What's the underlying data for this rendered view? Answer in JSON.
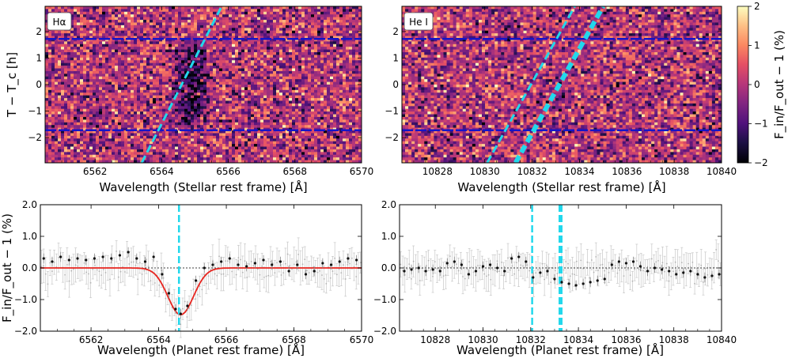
{
  "chart_data": [
    {
      "type": "heatmap",
      "panel": "top-left",
      "tag": "Hα",
      "xlabel": "Wavelength (Stellar rest frame) [Å]",
      "ylabel": "T − T_c [h]",
      "xlim": [
        6560.5,
        6570
      ],
      "ylim": [
        -2.95,
        2.95
      ],
      "xticks": [
        "6562",
        "6564",
        "6566",
        "6568",
        "6570"
      ],
      "xtick_values": [
        6562,
        6564,
        6566,
        6568,
        6570
      ],
      "yticks": [
        "−2",
        "−1",
        "0",
        "1",
        "2"
      ],
      "ytick_values": [
        -2,
        -1,
        0,
        1,
        2
      ],
      "colormap": "magma",
      "clim": [
        -2,
        2
      ],
      "absorption_feature": {
        "center": 6564.9,
        "halfwidth": 0.45,
        "t_range": [
          -1.7,
          1.7
        ],
        "depth": -1.5
      },
      "contact_lines": [
        1.72,
        -1.72
      ],
      "planet_trail": [
        {
          "x": [
            6563.4,
            6565.8
          ],
          "y": [
            -2.95,
            2.95
          ]
        }
      ]
    },
    {
      "type": "heatmap",
      "panel": "top-right",
      "tag": "He I",
      "xlabel": "Wavelength (Stellar rest frame) [Å]",
      "ylabel": "",
      "xlim": [
        10826.5,
        10840
      ],
      "ylim": [
        -2.95,
        2.95
      ],
      "xticks": [
        "10828",
        "10830",
        "10832",
        "10834",
        "10836",
        "10838",
        "10840"
      ],
      "xtick_values": [
        10828,
        10830,
        10832,
        10834,
        10836,
        10838,
        10840
      ],
      "yticks": [
        "−2",
        "−1",
        "0",
        "1",
        "2"
      ],
      "ytick_values": [
        -2,
        -1,
        0,
        1,
        2
      ],
      "colormap": "magma",
      "clim": [
        -2,
        2
      ],
      "contact_lines": [
        1.72,
        -1.72
      ],
      "planet_trail": [
        {
          "x": [
            10830.1,
            10833.8
          ],
          "y": [
            -2.95,
            2.95
          ],
          "width": 3
        },
        {
          "x": [
            10831.3,
            10835.0
          ],
          "y": [
            -2.95,
            2.95
          ],
          "width": 6
        }
      ]
    },
    {
      "type": "scatter",
      "panel": "bottom-left",
      "xlabel": "Wavelength (Planet rest frame) [Å]",
      "ylabel": "F_in/F_out − 1 (%)",
      "xlim": [
        6560.5,
        6570
      ],
      "ylim": [
        -2.0,
        2.0
      ],
      "xticks": [
        "6562",
        "6564",
        "6566",
        "6568",
        "6570"
      ],
      "xtick_values": [
        6562,
        6564,
        6566,
        6568,
        6570
      ],
      "yticks": [
        "2.0",
        "1.0",
        "0.0",
        "−1.0",
        "−2.0"
      ],
      "ytick_values": [
        2.0,
        1.0,
        0.0,
        -1.0,
        -2.0
      ],
      "binned_points": {
        "x": [
          6560.6,
          6560.85,
          6561.1,
          6561.35,
          6561.6,
          6561.85,
          6562.1,
          6562.35,
          6562.6,
          6562.85,
          6563.1,
          6563.35,
          6563.6,
          6563.85,
          6564.1,
          6564.3,
          6564.5,
          6564.65,
          6564.85,
          6565.1,
          6565.35,
          6565.6,
          6565.85,
          6566.1,
          6566.35,
          6566.6,
          6566.85,
          6567.1,
          6567.35,
          6567.6,
          6567.85,
          6568.1,
          6568.35,
          6568.6,
          6568.85,
          6569.1,
          6569.35,
          6569.6,
          6569.85
        ],
        "y": [
          0.3,
          0.2,
          0.35,
          0.25,
          0.3,
          0.25,
          0.3,
          0.35,
          0.3,
          0.4,
          0.5,
          0.3,
          0.2,
          0.35,
          -0.2,
          -0.8,
          -1.3,
          -1.45,
          -1.2,
          -0.4,
          0.0,
          0.1,
          0.2,
          0.3,
          0.1,
          0.05,
          0.15,
          0.25,
          0.1,
          0.2,
          -0.1,
          0.1,
          -0.2,
          -0.1,
          0.15,
          0.1,
          0.2,
          0.3,
          0.25
        ],
        "yerr": [
          0.35,
          0.35,
          0.35,
          0.35,
          0.35,
          0.35,
          0.35,
          0.35,
          0.35,
          0.35,
          0.35,
          0.35,
          0.35,
          0.35,
          0.35,
          0.35,
          0.35,
          0.35,
          0.35,
          0.35,
          0.35,
          0.35,
          0.35,
          0.35,
          0.35,
          0.35,
          0.35,
          0.35,
          0.35,
          0.35,
          0.35,
          0.35,
          0.35,
          0.35,
          0.35,
          0.35,
          0.35,
          0.35,
          0.35
        ]
      },
      "model": {
        "type": "gaussian",
        "amplitude": -1.48,
        "center": 6564.65,
        "sigma": 0.38,
        "color": "#e8251f"
      },
      "line_center": 6564.6,
      "zero_line": 0.0
    },
    {
      "type": "scatter",
      "panel": "bottom-right",
      "xlabel": "Wavelength (Planet rest frame) [Å]",
      "ylabel": "",
      "xlim": [
        10826.5,
        10840
      ],
      "ylim": [
        -2.0,
        2.0
      ],
      "xticks": [
        "10828",
        "10830",
        "10832",
        "10834",
        "10836",
        "10838",
        "10840"
      ],
      "xtick_values": [
        10828,
        10830,
        10832,
        10834,
        10836,
        10838,
        10840
      ],
      "yticks": [
        "2.0",
        "1.0",
        "0.0",
        "−1.0",
        "−2.0"
      ],
      "ytick_values": [
        2.0,
        1.0,
        0.0,
        -1.0,
        -2.0
      ],
      "binned_points": {
        "x": [
          10826.7,
          10827.0,
          10827.3,
          10827.6,
          10827.9,
          10828.2,
          10828.5,
          10828.8,
          10829.1,
          10829.4,
          10829.7,
          10830.0,
          10830.3,
          10830.6,
          10830.9,
          10831.2,
          10831.5,
          10831.8,
          10832.1,
          10832.4,
          10832.7,
          10833.0,
          10833.3,
          10833.6,
          10833.9,
          10834.2,
          10834.5,
          10834.8,
          10835.1,
          10835.4,
          10835.7,
          10836.0,
          10836.3,
          10836.6,
          10836.9,
          10837.2,
          10837.5,
          10837.8,
          10838.1,
          10838.4,
          10838.7,
          10839.0,
          10839.3,
          10839.6,
          10839.9
        ],
        "y": [
          -0.1,
          -0.05,
          0.0,
          -0.1,
          -0.05,
          -0.1,
          0.15,
          0.2,
          0.1,
          -0.2,
          -0.1,
          0.05,
          0.1,
          0.0,
          -0.1,
          0.3,
          0.35,
          0.2,
          -0.3,
          -0.15,
          -0.1,
          -0.35,
          -0.45,
          -0.5,
          -0.55,
          -0.5,
          -0.45,
          -0.4,
          -0.35,
          0.1,
          0.2,
          0.15,
          0.2,
          0.05,
          -0.1,
          0.0,
          -0.05,
          -0.1,
          -0.2,
          -0.15,
          -0.1,
          -0.2,
          -0.3,
          -0.25,
          -0.2
        ],
        "yerr": [
          0.35,
          0.35,
          0.35,
          0.35,
          0.35,
          0.35,
          0.35,
          0.35,
          0.35,
          0.35,
          0.35,
          0.35,
          0.35,
          0.35,
          0.35,
          0.35,
          0.35,
          0.35,
          0.35,
          0.35,
          0.35,
          0.35,
          0.35,
          0.35,
          0.35,
          0.35,
          0.35,
          0.35,
          0.35,
          0.35,
          0.35,
          0.35,
          0.35,
          0.35,
          0.35,
          0.35,
          0.35,
          0.35,
          0.35,
          0.35,
          0.35,
          0.35,
          0.35,
          0.35,
          0.35
        ]
      },
      "line_centers": [
        10832.06,
        10833.25
      ],
      "zero_line": 0.0
    }
  ],
  "colorbar": {
    "label": "F_in/F_out − 1 (%)",
    "ticks": [
      "2",
      "1",
      "0",
      "−1",
      "−2"
    ],
    "tick_values": [
      2,
      1,
      0,
      -1,
      -2
    ],
    "range": [
      -2,
      2
    ]
  },
  "colors": {
    "contact_lines": "#1414c8",
    "planet_trail": "#22d8ec",
    "binned_points": "#111111",
    "error_bars": "#c8c8c8",
    "zero_line": "#000000"
  }
}
